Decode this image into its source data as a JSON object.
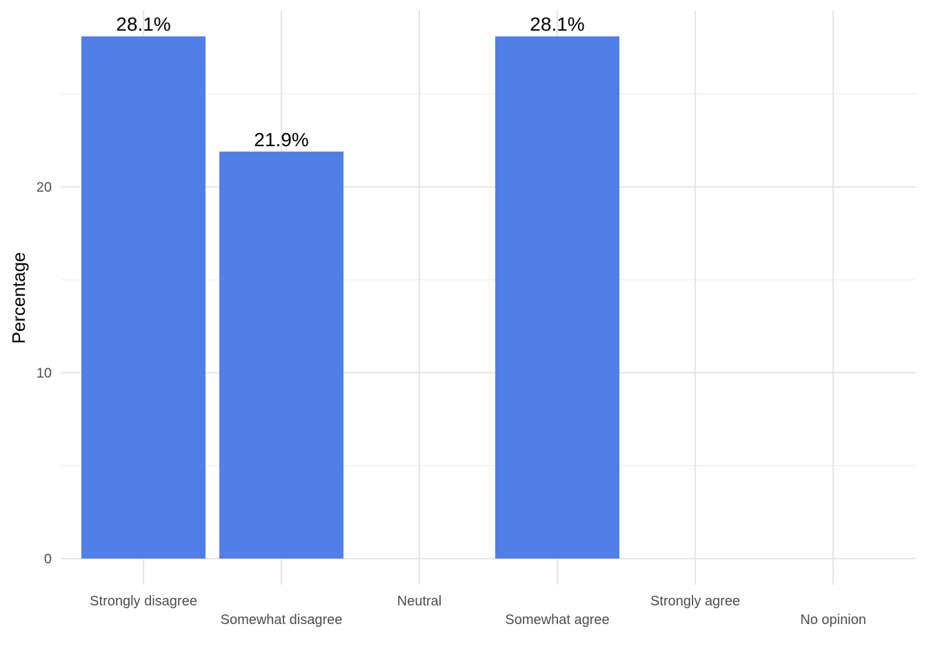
{
  "chart_data": {
    "type": "bar",
    "categories": [
      "Strongly disagree",
      "Somewhat disagree",
      "Neutral",
      "Somewhat agree",
      "Strongly agree",
      "No opinion"
    ],
    "values": [
      28.1,
      21.9,
      0,
      28.1,
      0,
      0
    ],
    "data_labels": [
      "28.1%",
      "21.9%",
      "",
      "28.1%",
      "",
      ""
    ],
    "title": "",
    "xlabel": "",
    "ylabel": "Percentage",
    "ylim": [
      0,
      28.1
    ],
    "yticks": [
      0,
      10,
      20
    ],
    "ytick_labels": [
      "0",
      "10",
      "20"
    ],
    "grid": true,
    "legend": "none",
    "bar_color": "#527FE7"
  }
}
